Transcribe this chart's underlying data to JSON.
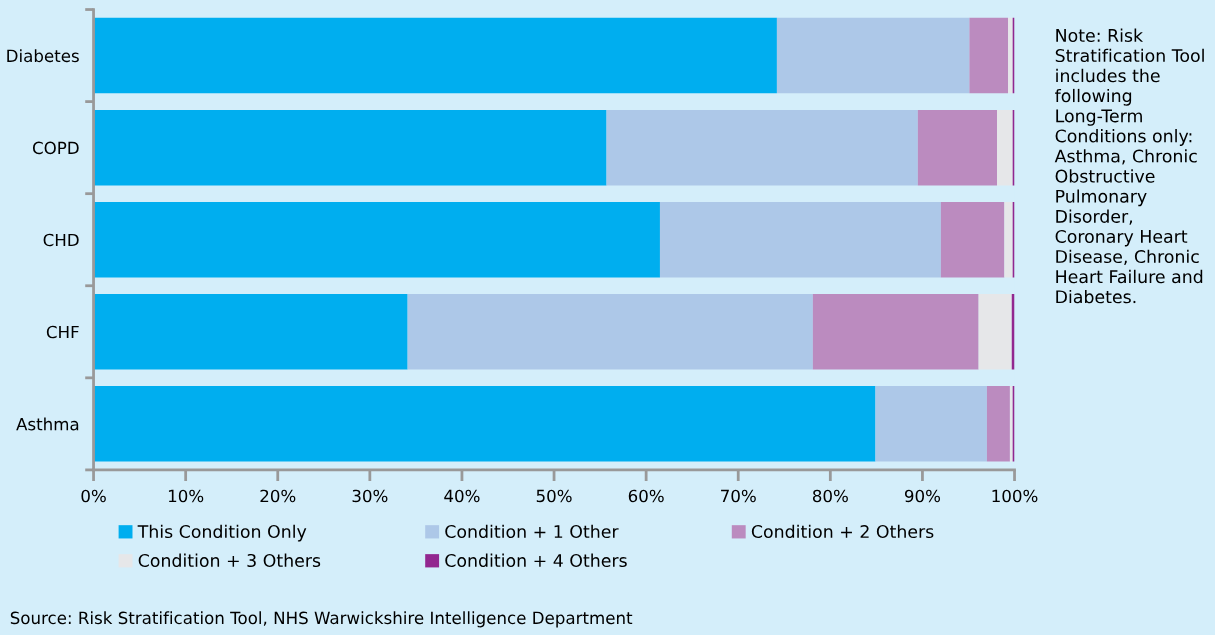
{
  "chart_data": {
    "type": "bar",
    "orientation": "horizontal",
    "stacked": true,
    "categories": [
      "Diabetes",
      "COPD",
      "CHD",
      "CHF",
      "Asthma"
    ],
    "series": [
      {
        "name": "This Condition Only",
        "color": "#00aeef",
        "values": [
          74.2,
          55.7,
          61.5,
          34.1,
          84.9
        ]
      },
      {
        "name": "Condition + 1 Other",
        "color": "#adc8e8",
        "values": [
          20.9,
          33.8,
          30.5,
          44.0,
          12.1
        ]
      },
      {
        "name": "Condition + 2 Others",
        "color": "#bb8bbf",
        "values": [
          4.2,
          8.6,
          6.9,
          18.0,
          2.5
        ]
      },
      {
        "name": "Condition + 3 Others",
        "color": "#e6e7e9",
        "values": [
          0.5,
          1.7,
          0.9,
          3.6,
          0.3
        ]
      },
      {
        "name": "Condition + 4 Others",
        "color": "#92278f",
        "values": [
          0.2,
          0.2,
          0.2,
          0.3,
          0.2
        ]
      }
    ],
    "xlim": [
      0,
      100
    ],
    "xticks": [
      {
        "value": 0,
        "label": "0%"
      },
      {
        "value": 10,
        "label": "10%"
      },
      {
        "value": 20,
        "label": "20%"
      },
      {
        "value": 30,
        "label": "30%"
      },
      {
        "value": 40,
        "label": "40%"
      },
      {
        "value": 50,
        "label": "50%"
      },
      {
        "value": 60,
        "label": "60%"
      },
      {
        "value": 70,
        "label": "70%"
      },
      {
        "value": 80,
        "label": "80%"
      },
      {
        "value": 90,
        "label": "90%"
      },
      {
        "value": 100,
        "label": "100%"
      }
    ],
    "grid": false,
    "legend": "bottom",
    "annotations": [
      "Note: Risk Stratification Tool includes the following Long-Term Conditions only: Asthma, Chronic Obstructive Pulmonary Disorder, Coronary Heart Disease, Chronic Heart Failure and Diabetes.",
      "Source: Risk Stratification Tool, NHS Warwickshire Intelligence Department"
    ]
  }
}
